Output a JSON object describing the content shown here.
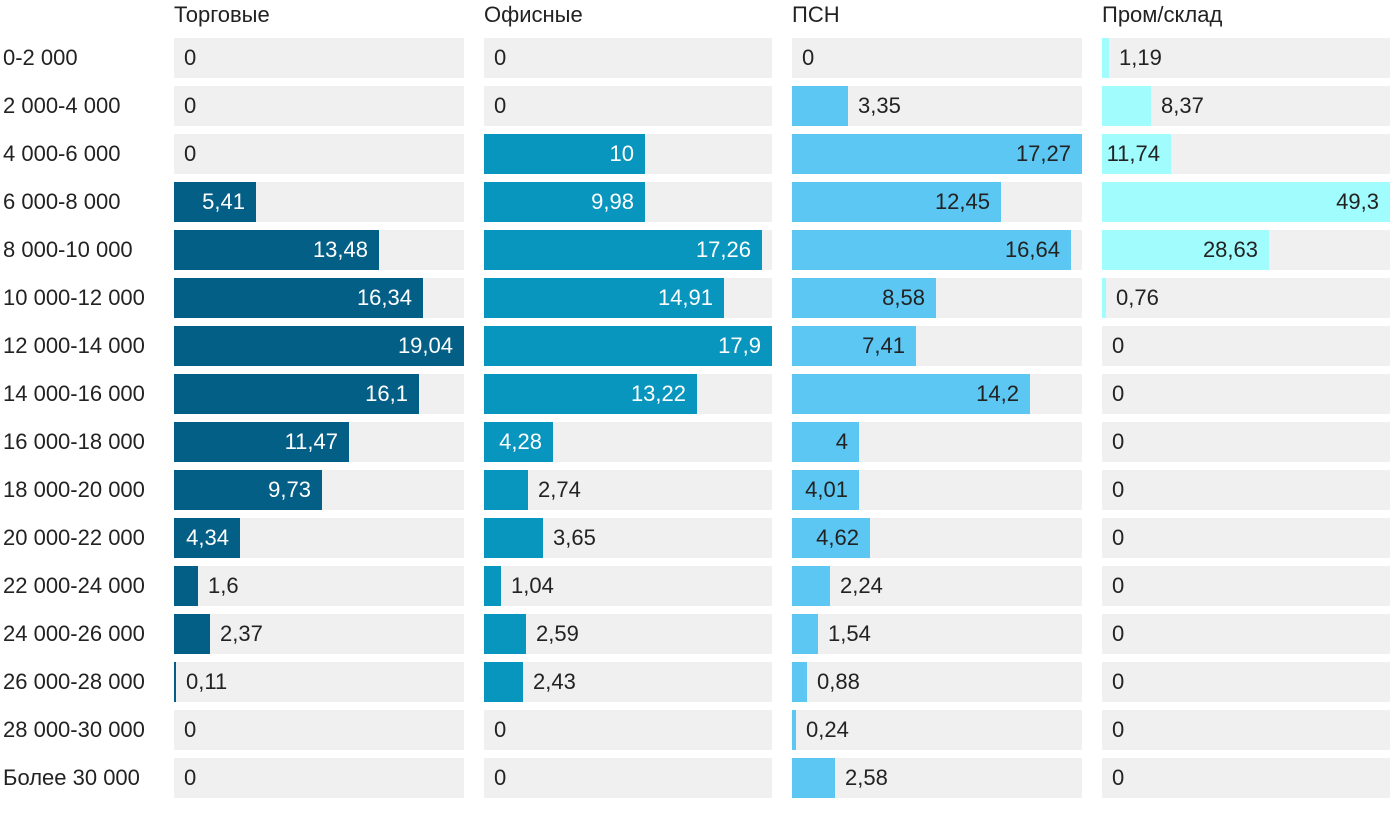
{
  "chart_data": {
    "type": "bar",
    "categories": [
      "0-2 000",
      "2 000-4 000",
      "4 000-6 000",
      "6 000-8 000",
      "8 000-10 000",
      "10 000-12 000",
      "12 000-14 000",
      "14 000-16 000",
      "16 000-18 000",
      "18 000-20 000",
      "20 000-22 000",
      "22 000-24 000",
      "24 000-26 000",
      "26 000-28 000",
      "28 000-30 000",
      "Более 30 000"
    ],
    "series": [
      {
        "name": "Торговые",
        "color": "#045f87",
        "xlim": [
          0,
          19.04
        ],
        "values": [
          0,
          0,
          0,
          5.41,
          13.48,
          16.34,
          19.04,
          16.1,
          11.47,
          9.73,
          4.34,
          1.6,
          2.37,
          0.11,
          0,
          0
        ],
        "labels": [
          "0",
          "0",
          "0",
          "5,41",
          "13,48",
          "16,34",
          "19,04",
          "16,1",
          "11,47",
          "9,73",
          "4,34",
          "1,6",
          "2,37",
          "0,11",
          "0",
          "0"
        ]
      },
      {
        "name": "Офисные",
        "color": "#0895be",
        "xlim": [
          0,
          17.9
        ],
        "values": [
          0,
          0,
          10,
          9.98,
          17.26,
          14.91,
          17.9,
          13.22,
          4.28,
          2.74,
          3.65,
          1.04,
          2.59,
          2.43,
          0,
          0
        ],
        "labels": [
          "0",
          "0",
          "10",
          "9,98",
          "17,26",
          "14,91",
          "17,9",
          "13,22",
          "4,28",
          "2,74",
          "3,65",
          "1,04",
          "2,59",
          "2,43",
          "0",
          "0"
        ]
      },
      {
        "name": "ПСН",
        "color": "#5cc7f3",
        "xlim": [
          0,
          17.27
        ],
        "values": [
          0,
          3.35,
          17.27,
          12.45,
          16.64,
          8.58,
          7.41,
          14.2,
          4,
          4.01,
          4.62,
          2.24,
          1.54,
          0.88,
          0.24,
          2.58
        ],
        "labels": [
          "0",
          "3,35",
          "17,27",
          "12,45",
          "16,64",
          "8,58",
          "7,41",
          "14,2",
          "4",
          "4,01",
          "4,62",
          "2,24",
          "1,54",
          "0,88",
          "0,24",
          "2,58"
        ]
      },
      {
        "name": "Пром/склад",
        "color": "#a0fcfd",
        "xlim": [
          0,
          49.3
        ],
        "values": [
          1.19,
          8.37,
          11.74,
          49.3,
          28.63,
          0.76,
          0,
          0,
          0,
          0,
          0,
          0,
          0,
          0,
          0,
          0
        ],
        "labels": [
          "1,19",
          "8,37",
          "11,74",
          "49,3",
          "28,63",
          "0,76",
          "0",
          "0",
          "0",
          "0",
          "0",
          "0",
          "0",
          "0",
          "0",
          "0"
        ]
      }
    ],
    "track_color": "#f0f0f0",
    "legend": "column-titles-top",
    "grid": false
  }
}
